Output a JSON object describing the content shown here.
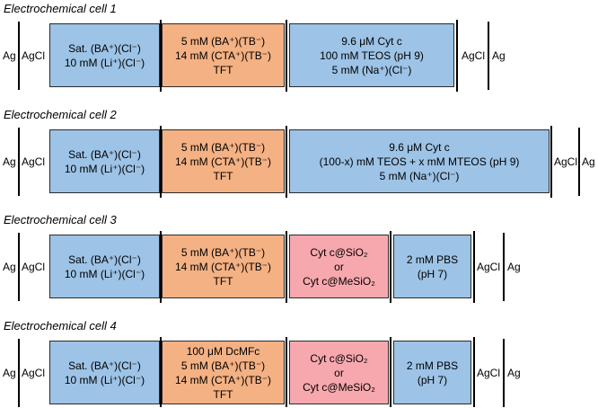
{
  "cells": [
    {
      "title": "Electrochemical cell 1",
      "left_metal": "Ag",
      "left_salt": "AgCl",
      "aq_ref": [
        "Sat. (BA⁺)(Cl⁻)",
        "10 mM (Li⁺)(Cl⁻)"
      ],
      "organic": [
        "5 mM (BA⁺)(TB⁻)",
        "14 mM (CTA⁺)(TB⁻)",
        "TFT"
      ],
      "aqueous": [
        "9.6 μM Cyt c",
        "100 mM TEOS (pH 9)",
        "5 mM (Na⁺)(Cl⁻)"
      ],
      "right_salt": "AgCl",
      "right_metal": "Ag"
    },
    {
      "title": "Electrochemical cell 2",
      "left_metal": "Ag",
      "left_salt": "AgCl",
      "aq_ref": [
        "Sat. (BA⁺)(Cl⁻)",
        "10 mM (Li⁺)(Cl⁻)"
      ],
      "organic": [
        "5 mM (BA⁺)(TB⁻)",
        "14 mM (CTA⁺)(TB⁻)",
        "TFT"
      ],
      "aqueous": [
        "9.6 μM Cyt c",
        "(100-x) mM TEOS + x mM MTEOS (pH 9)",
        "5 mM (Na⁺)(Cl⁻)"
      ],
      "right_salt": "AgCl",
      "right_metal": "Ag"
    },
    {
      "title": "Electrochemical cell 3",
      "left_metal": "Ag",
      "left_salt": "AgCl",
      "aq_ref": [
        "Sat. (BA⁺)(Cl⁻)",
        "10 mM (Li⁺)(Cl⁻)"
      ],
      "organic": [
        "5 mM (BA⁺)(TB⁻)",
        "14 mM (CTA⁺)(TB⁻)",
        "TFT"
      ],
      "film": [
        "Cyt c@SiO₂",
        "or",
        "Cyt c@MeSiO₂"
      ],
      "aqueous": [
        "2 mM PBS",
        "(pH 7)"
      ],
      "right_salt": "AgCl",
      "right_metal": "Ag"
    },
    {
      "title": "Electrochemical cell 4",
      "left_metal": "Ag",
      "left_salt": "AgCl",
      "aq_ref": [
        "Sat. (BA⁺)(Cl⁻)",
        "10 mM (Li⁺)(Cl⁻)"
      ],
      "organic": [
        "100 μM DcMFc",
        "5 mM (BA⁺)(TB⁻)",
        "14 mM (CTA⁺)(TB⁻)",
        "TFT"
      ],
      "film": [
        "Cyt c@SiO₂",
        "or",
        "Cyt c@MeSiO₂"
      ],
      "aqueous": [
        "2 mM PBS",
        "(pH 7)"
      ],
      "right_salt": "AgCl",
      "right_metal": "Ag"
    }
  ],
  "colors": {
    "aqueous_blue": "#9dc3e6",
    "organic_orange": "#f4b183",
    "film_pink": "#f7a8ae"
  }
}
